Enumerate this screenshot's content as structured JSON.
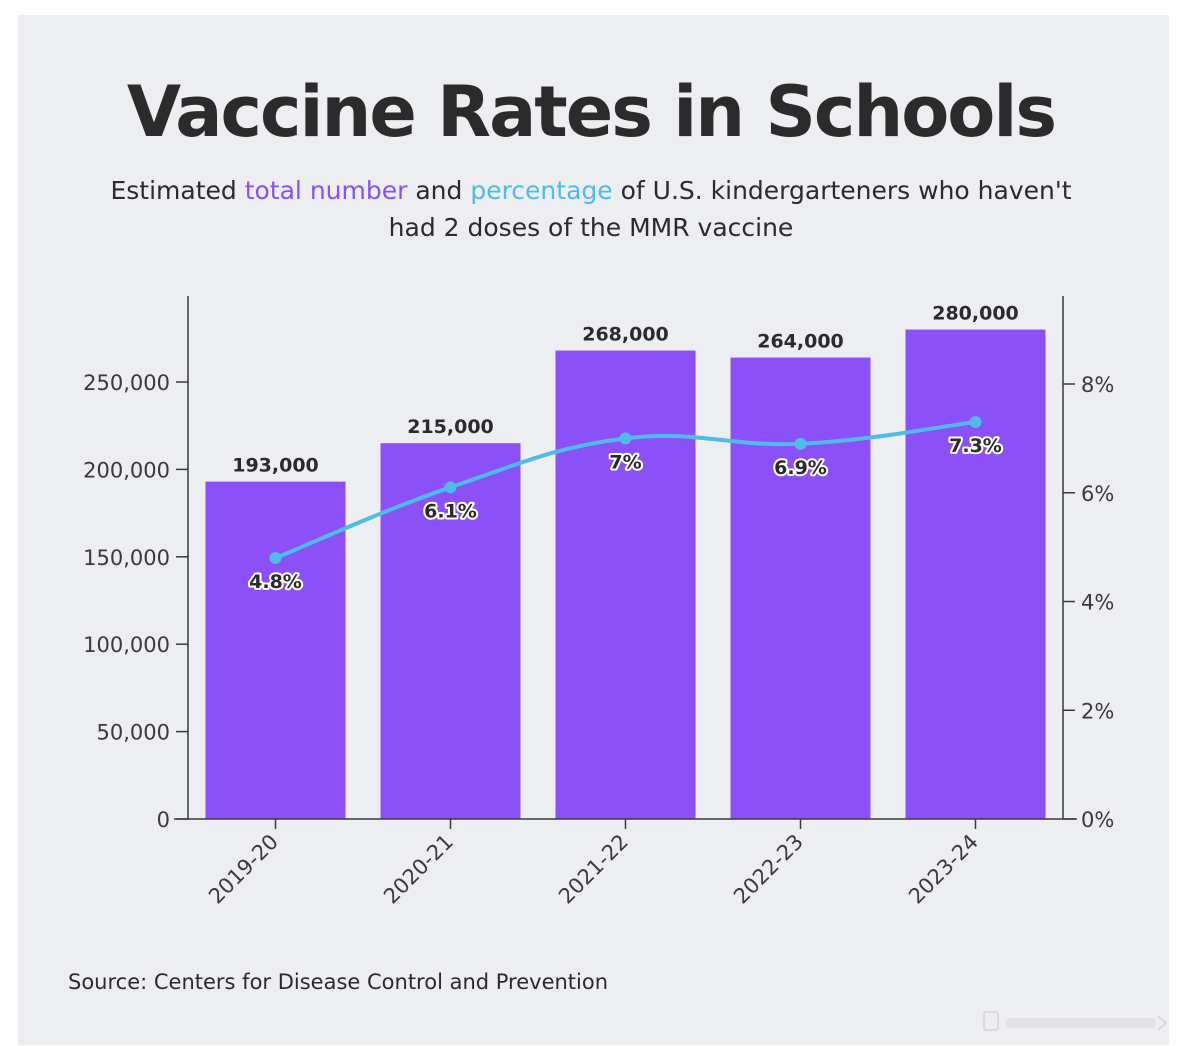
{
  "header": {
    "title": "Vaccine Rates in Schools",
    "subtitle_part1": "Estimated ",
    "subtitle_highlight1": "total number",
    "subtitle_part2": " and ",
    "subtitle_highlight2": "percentage",
    "subtitle_part3": " of U.S. kindergarteners who haven't had 2 doses of the MMR vaccine"
  },
  "footer": {
    "source": "Source: Centers for Disease Control and Prevention"
  },
  "colors": {
    "bar": "#8b50f7",
    "line": "#4fbce8",
    "axis": "#3a3a3a",
    "text": "#2b2b2b",
    "background": "#edeef2"
  },
  "chart_data": {
    "type": "bar",
    "categories": [
      "2019-20",
      "2020-21",
      "2021-22",
      "2022-23",
      "2023-24"
    ],
    "series": [
      {
        "name": "total number",
        "type": "bar",
        "axis": "left",
        "values": [
          193000,
          215000,
          268000,
          264000,
          280000
        ],
        "labels": [
          "193,000",
          "215,000",
          "268,000",
          "264,000",
          "280,000"
        ]
      },
      {
        "name": "percentage",
        "type": "line",
        "axis": "right",
        "values": [
          4.8,
          6.1,
          7.0,
          6.9,
          7.3
        ],
        "labels": [
          "4.8%",
          "6.1%",
          "7%",
          "6.9%",
          "7.3%"
        ]
      }
    ],
    "left_axis": {
      "ylim": [
        0,
        300000
      ],
      "ticks": [
        0,
        50000,
        100000,
        150000,
        200000,
        250000
      ],
      "tick_labels": [
        "0",
        "50,000",
        "100,000",
        "150,000",
        "200,000",
        "250,000"
      ]
    },
    "right_axis": {
      "ylim": [
        0,
        9.6
      ],
      "ticks": [
        0,
        2,
        4,
        6,
        8
      ],
      "tick_labels": [
        "0%",
        "2%",
        "4%",
        "6%",
        "8%"
      ]
    },
    "grid": false,
    "legend": "none"
  }
}
